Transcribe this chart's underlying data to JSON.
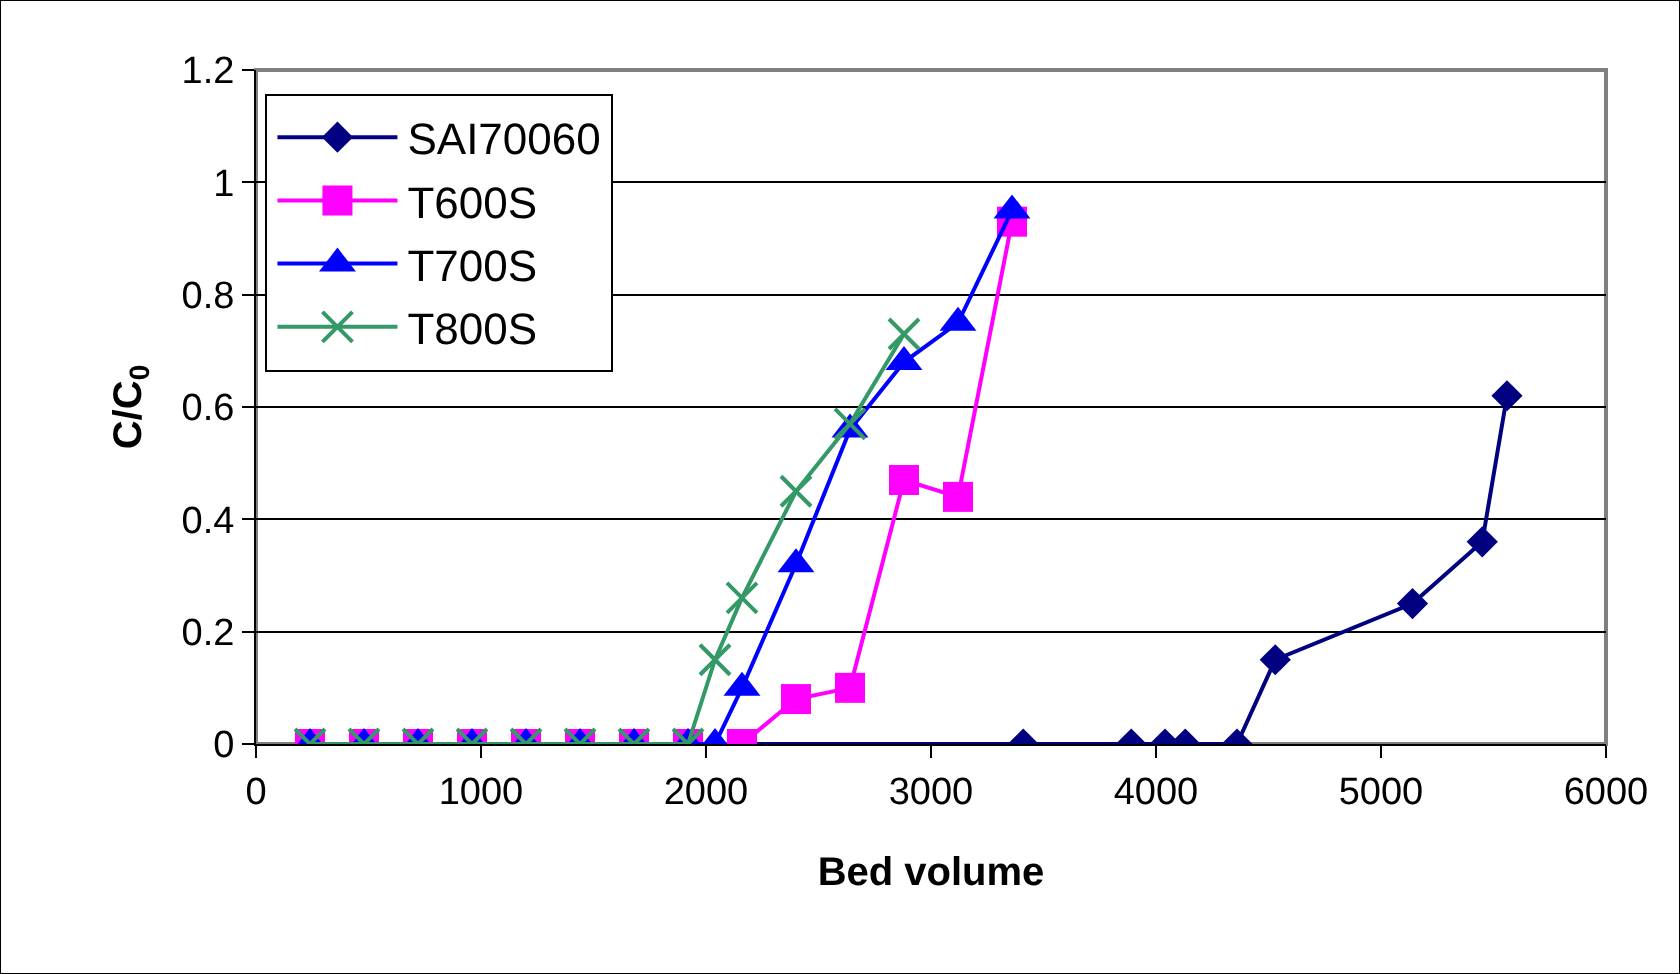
{
  "chart_data": {
    "type": "line",
    "xlabel": "Bed volume",
    "ylabel": "C/C$_{0}$",
    "xlim": [
      0,
      6000
    ],
    "xticks": [
      0,
      1000,
      2000,
      3000,
      4000,
      5000,
      6000
    ],
    "ylim": [
      0,
      1.2
    ],
    "yticks": [
      0,
      {
        "value": 0.2,
        "label": "0.2"
      },
      {
        "value": 0.4,
        "label": "0.4"
      },
      {
        "value": 0.6,
        "label": "0.6"
      },
      {
        "value": 0.8,
        "label": "0.8"
      },
      1,
      {
        "value": 1.2,
        "label": "1.2"
      }
    ],
    "grid": "y",
    "legend": "top left",
    "line_style": "solid",
    "series": [
      {
        "name": "SAI70060",
        "color": "#000080",
        "marker": "diamond",
        "x": [
          1680,
          1920,
          3410,
          3890,
          4040,
          4130,
          4360,
          4530,
          5140,
          5450,
          5560
        ],
        "values": [
          0,
          0,
          0,
          0,
          0,
          0,
          0,
          0.15,
          0.25,
          0.36,
          0.62
        ]
      },
      {
        "name": "T600S",
        "color": "#ff00ff",
        "marker": "square",
        "x": [
          240,
          480,
          720,
          960,
          1200,
          1440,
          1680,
          1920,
          2160,
          2400,
          2640,
          2880,
          3120,
          3360
        ],
        "values": [
          0,
          0,
          0,
          0,
          0,
          0,
          0,
          0,
          0,
          0.08,
          0.1,
          0.47,
          0.44,
          0.93
        ]
      },
      {
        "name": "T700S",
        "color": "#0000ff",
        "marker": "triangle",
        "x": [
          240,
          480,
          720,
          960,
          1200,
          1440,
          1680,
          1920,
          2040,
          2160,
          2400,
          2640,
          2880,
          3120,
          3360
        ],
        "values": [
          0,
          0,
          0,
          0,
          0,
          0,
          0,
          0,
          0,
          0.1,
          0.32,
          0.56,
          0.68,
          0.75,
          0.95
        ]
      },
      {
        "name": "T800S",
        "color": "#339966",
        "marker": "cross",
        "x": [
          240,
          480,
          720,
          960,
          1200,
          1440,
          1680,
          1920,
          2040,
          2160,
          2400,
          2640,
          2880
        ],
        "values": [
          0,
          0,
          0,
          0,
          0,
          0,
          0,
          0,
          0.15,
          0.26,
          0.45,
          0.57,
          0.73
        ]
      }
    ]
  }
}
